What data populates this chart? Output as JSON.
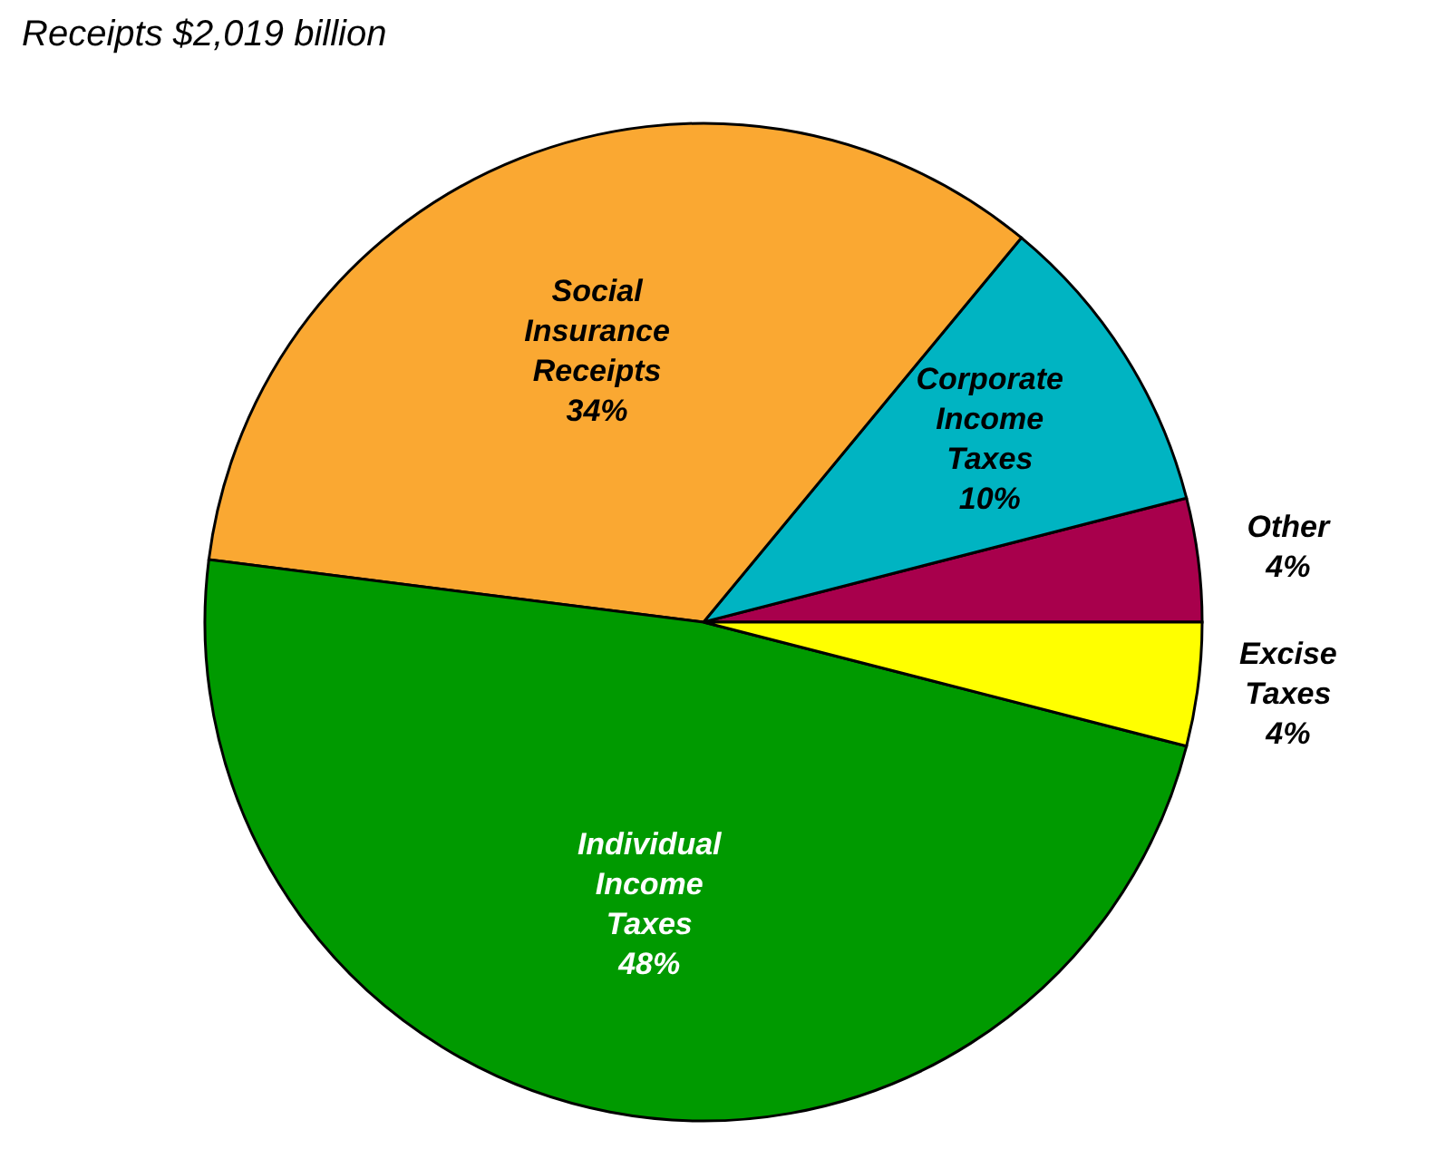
{
  "chart_data": {
    "type": "pie",
    "title": "Receipts $2,019 billion",
    "categories": [
      "Other",
      "Corporate Income Taxes",
      "Social Insurance Receipts",
      "Individual Income Taxes",
      "Excise Taxes"
    ],
    "values": [
      4,
      10,
      34,
      48,
      4
    ],
    "value_labels": [
      "4%",
      "10%",
      "34%",
      "48%",
      "4%"
    ],
    "colors": [
      "#a8004c",
      "#00b4c2",
      "#faa832",
      "#009a00",
      "#ffff00"
    ],
    "legend": false
  }
}
